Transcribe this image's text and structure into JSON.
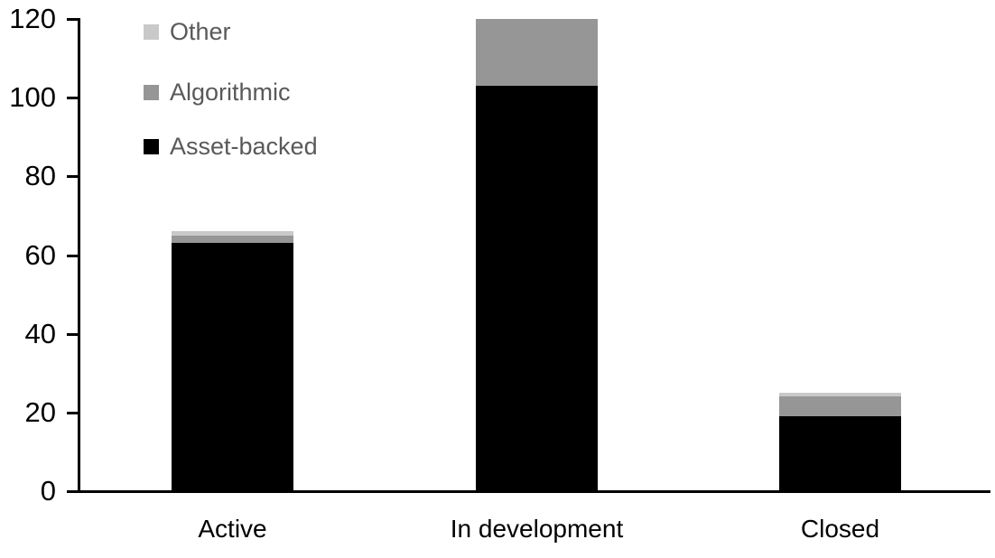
{
  "chart_data": {
    "type": "bar",
    "stacked": true,
    "title": "",
    "xlabel": "",
    "ylabel": "",
    "categories": [
      "Active",
      "In development",
      "Closed"
    ],
    "series": [
      {
        "name": "Asset-backed",
        "color": "#000000",
        "values": [
          63,
          103,
          19
        ]
      },
      {
        "name": "Algorithmic",
        "color": "#969696",
        "values": [
          2,
          17,
          5
        ]
      },
      {
        "name": "Other",
        "color": "#c9c9c9",
        "values": [
          1,
          0,
          1
        ]
      }
    ],
    "totals": [
      66,
      120,
      25
    ],
    "y_ticks": [
      0,
      20,
      40,
      60,
      80,
      100,
      120
    ],
    "ylim": [
      0,
      120
    ],
    "grid": false,
    "legend_position": "top-left",
    "legend_order": [
      "Other",
      "Algorithmic",
      "Asset-backed"
    ],
    "legend_text_color": "#595959",
    "axis_color": "#000000"
  }
}
